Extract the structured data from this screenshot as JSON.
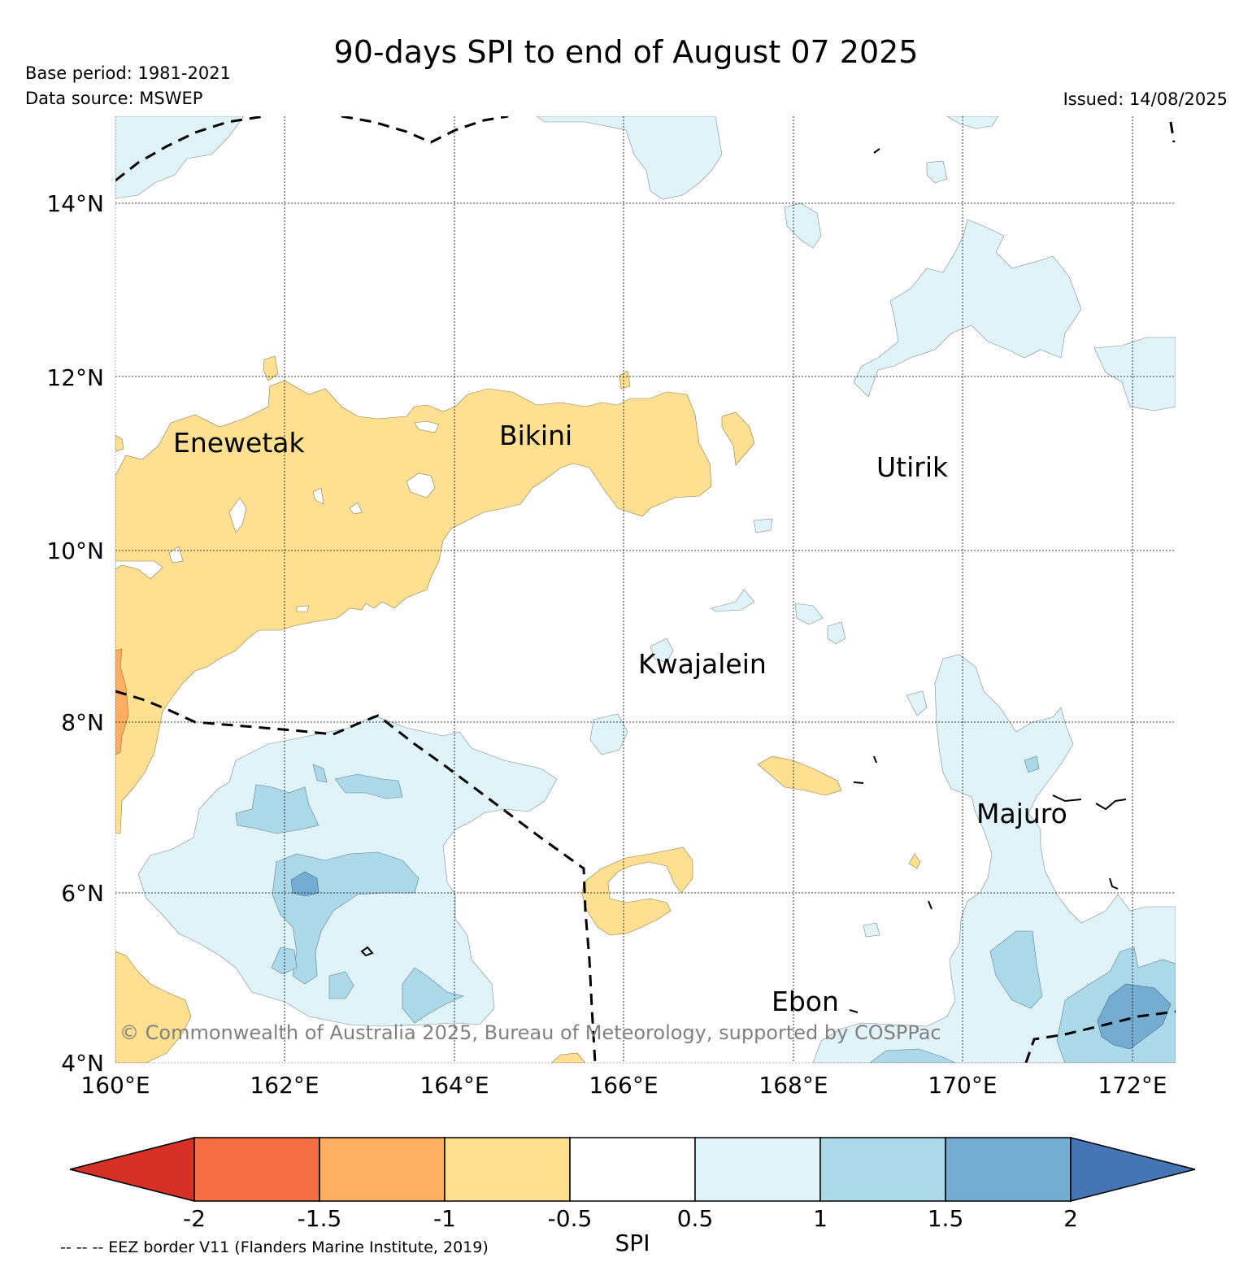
{
  "header": {
    "title": "90-days SPI to end of August 07 2025",
    "base_period": "Base period: 1981-2021",
    "data_source": "Data source: MSWEP",
    "issued": "Issued: 14/08/2025"
  },
  "map": {
    "lon_range": [
      160,
      172.5
    ],
    "lat_range": [
      4,
      15
    ],
    "x_ticks": [
      "160°E",
      "162°E",
      "164°E",
      "166°E",
      "168°E",
      "170°E",
      "172°E"
    ],
    "y_ticks": [
      "4°N",
      "6°N",
      "8°N",
      "10°N",
      "12°N",
      "14°N"
    ],
    "places": [
      {
        "name": "Enewetak"
      },
      {
        "name": "Bikini"
      },
      {
        "name": "Utirik"
      },
      {
        "name": "Kwajalein"
      },
      {
        "name": "Majuro"
      },
      {
        "name": "Ebon"
      }
    ],
    "copyright": "© Commonwealth of Australia 2025, Bureau of Meteorology, supported by COSPPac",
    "eez_border_style": "dashed"
  },
  "colorbar": {
    "label": "SPI",
    "ticks": [
      "-2",
      "-1.5",
      "-1",
      "-0.5",
      "0.5",
      "1",
      "1.5",
      "2"
    ],
    "colors": [
      "#d73027",
      "#f46d43",
      "#fdae61",
      "#fee090",
      "#ffffff",
      "#e0f3f8",
      "#abd9e9",
      "#74add1",
      "#4575b4"
    ],
    "extend": "both"
  },
  "footnote": "-- -- -- EEZ border V11 (Flanders Marine Institute, 2019)"
}
